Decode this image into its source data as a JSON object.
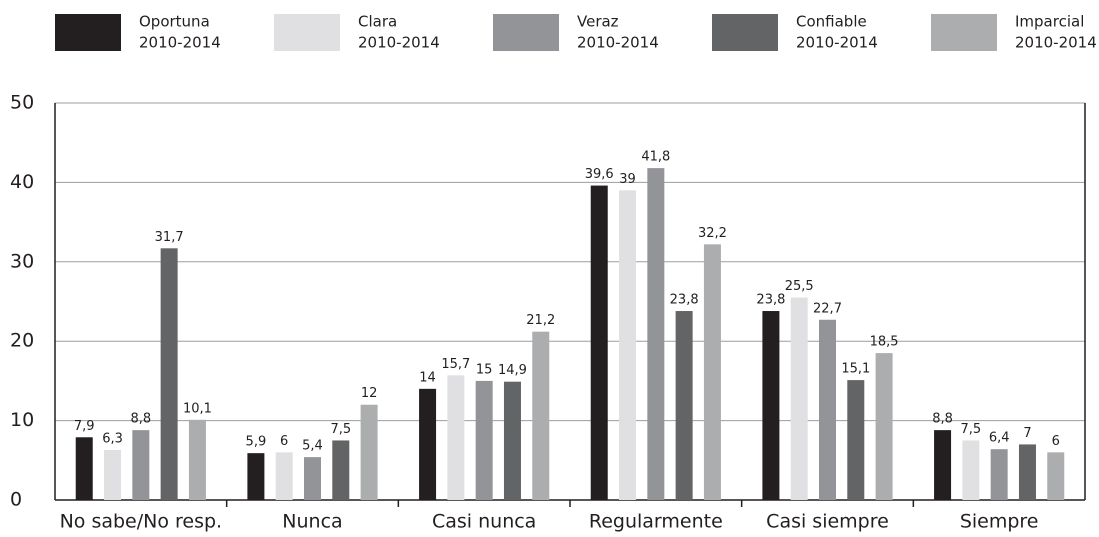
{
  "chart_data": {
    "type": "bar",
    "categories": [
      "No sabe/No resp.",
      "Nunca",
      "Casi nunca",
      "Regularmente",
      "Casi siempre",
      "Siempre"
    ],
    "series": [
      {
        "name": "Oportuna",
        "period": "2010-2014",
        "color": "#231f20",
        "values": [
          7.9,
          5.9,
          14,
          39.6,
          23.8,
          8.8
        ],
        "value_labels": [
          "7,9",
          "5,9",
          "14",
          "39,6",
          "23,8",
          "8,8"
        ]
      },
      {
        "name": "Clara",
        "period": "2010-2014",
        "color": "#e0e0e2",
        "values": [
          6.3,
          6,
          15.7,
          39,
          25.5,
          7.5
        ],
        "value_labels": [
          "6,3",
          "6",
          "15,7",
          "39",
          "25,5",
          "7,5"
        ]
      },
      {
        "name": "Veraz",
        "period": "2010-2014",
        "color": "#929497",
        "values": [
          8.8,
          5.4,
          15,
          41.8,
          22.7,
          6.4
        ],
        "value_labels": [
          "8,8",
          "5,4",
          "15",
          "41,8",
          "22,7",
          "6,4"
        ]
      },
      {
        "name": "Confiable",
        "period": "2010-2014",
        "color": "#636466",
        "values": [
          31.7,
          7.5,
          14.9,
          23.8,
          15.1,
          7
        ],
        "value_labels": [
          "31,7",
          "7,5",
          "14,9",
          "23,8",
          "15,1",
          "7"
        ]
      },
      {
        "name": "Imparcial",
        "period": "2010-2014",
        "color": "#acadaf",
        "values": [
          10.1,
          12,
          21.2,
          32.2,
          18.5,
          6
        ],
        "value_labels": [
          "10,1",
          "12",
          "21,2",
          "32,2",
          "18,5",
          "6"
        ]
      }
    ],
    "ylim": [
      0,
      50
    ],
    "yticks": [
      0,
      10,
      20,
      30,
      40,
      50
    ],
    "grid": true,
    "legend": "top"
  }
}
